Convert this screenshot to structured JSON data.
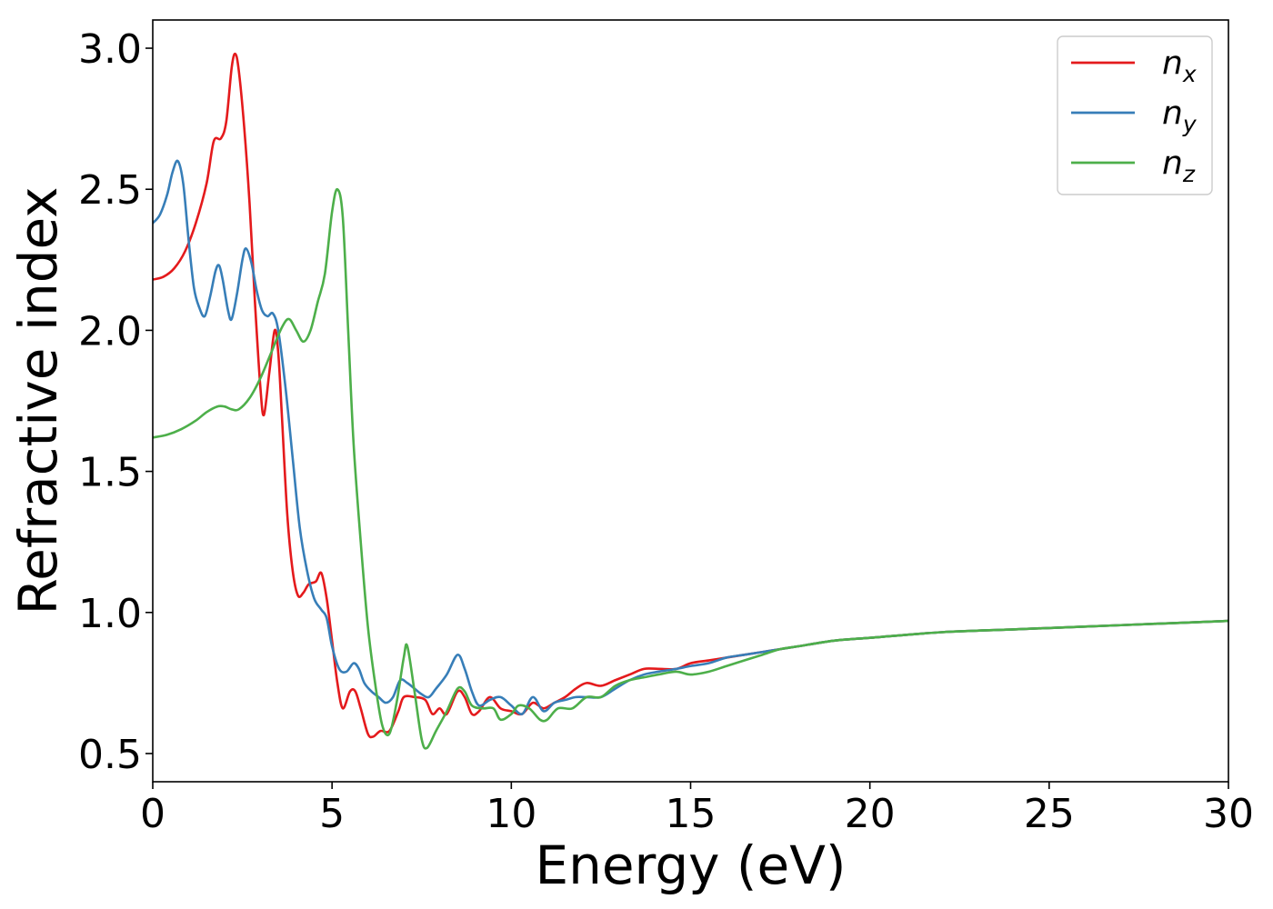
{
  "chart_data": {
    "type": "line",
    "title": "",
    "xlabel": "Energy (eV)",
    "ylabel": "Refractive index",
    "xlim": [
      0,
      30
    ],
    "ylim": [
      0.4,
      3.1
    ],
    "xticks": [
      0,
      5,
      10,
      15,
      20,
      25,
      30
    ],
    "yticks": [
      0.5,
      1.0,
      1.5,
      2.0,
      2.5,
      3.0
    ],
    "xtick_labels": [
      "0",
      "5",
      "10",
      "15",
      "20",
      "25",
      "30"
    ],
    "ytick_labels": [
      "0.5",
      "1.0",
      "1.5",
      "2.0",
      "2.5",
      "3.0"
    ],
    "grid": false,
    "legend_position": "top-right",
    "series": [
      {
        "name": "n_x",
        "legend_base": "n",
        "legend_sub": "x",
        "color": "#e41a1c",
        "points": [
          [
            0,
            2.18
          ],
          [
            0.3,
            2.19
          ],
          [
            0.6,
            2.22
          ],
          [
            0.9,
            2.28
          ],
          [
            1.2,
            2.38
          ],
          [
            1.5,
            2.52
          ],
          [
            1.7,
            2.67
          ],
          [
            1.9,
            2.68
          ],
          [
            2.05,
            2.74
          ],
          [
            2.2,
            2.93
          ],
          [
            2.3,
            2.98
          ],
          [
            2.4,
            2.92
          ],
          [
            2.55,
            2.72
          ],
          [
            2.7,
            2.45
          ],
          [
            2.85,
            2.1
          ],
          [
            3.0,
            1.8
          ],
          [
            3.1,
            1.7
          ],
          [
            3.25,
            1.85
          ],
          [
            3.4,
            2.0
          ],
          [
            3.5,
            1.92
          ],
          [
            3.6,
            1.7
          ],
          [
            3.75,
            1.35
          ],
          [
            3.9,
            1.15
          ],
          [
            4.05,
            1.06
          ],
          [
            4.2,
            1.07
          ],
          [
            4.35,
            1.1
          ],
          [
            4.55,
            1.11
          ],
          [
            4.7,
            1.14
          ],
          [
            4.85,
            1.05
          ],
          [
            5.0,
            0.9
          ],
          [
            5.15,
            0.75
          ],
          [
            5.3,
            0.66
          ],
          [
            5.5,
            0.72
          ],
          [
            5.65,
            0.72
          ],
          [
            5.8,
            0.66
          ],
          [
            6.0,
            0.57
          ],
          [
            6.15,
            0.56
          ],
          [
            6.35,
            0.58
          ],
          [
            6.6,
            0.58
          ],
          [
            6.85,
            0.65
          ],
          [
            7.0,
            0.7
          ],
          [
            7.3,
            0.7
          ],
          [
            7.6,
            0.69
          ],
          [
            7.8,
            0.64
          ],
          [
            8.0,
            0.66
          ],
          [
            8.2,
            0.64
          ],
          [
            8.5,
            0.72
          ],
          [
            8.7,
            0.7
          ],
          [
            8.9,
            0.64
          ],
          [
            9.1,
            0.65
          ],
          [
            9.4,
            0.7
          ],
          [
            9.7,
            0.66
          ],
          [
            10.0,
            0.65
          ],
          [
            10.3,
            0.64
          ],
          [
            10.6,
            0.68
          ],
          [
            10.9,
            0.66
          ],
          [
            11.2,
            0.68
          ],
          [
            11.5,
            0.7
          ],
          [
            11.8,
            0.73
          ],
          [
            12.1,
            0.75
          ],
          [
            12.5,
            0.74
          ],
          [
            12.9,
            0.76
          ],
          [
            13.3,
            0.78
          ],
          [
            13.7,
            0.8
          ],
          [
            14.1,
            0.8
          ],
          [
            14.6,
            0.8
          ],
          [
            15.0,
            0.82
          ],
          [
            15.5,
            0.83
          ],
          [
            16.0,
            0.84
          ],
          [
            16.5,
            0.85
          ],
          [
            17.0,
            0.86
          ],
          [
            17.5,
            0.87
          ],
          [
            18.0,
            0.88
          ],
          [
            19.0,
            0.9
          ],
          [
            20.0,
            0.91
          ],
          [
            22.0,
            0.93
          ],
          [
            24.0,
            0.94
          ],
          [
            26.0,
            0.95
          ],
          [
            28.0,
            0.96
          ],
          [
            30.0,
            0.97
          ]
        ]
      },
      {
        "name": "n_y",
        "legend_base": "n",
        "legend_sub": "y",
        "color": "#377eb8",
        "points": [
          [
            0,
            2.38
          ],
          [
            0.2,
            2.41
          ],
          [
            0.4,
            2.48
          ],
          [
            0.55,
            2.56
          ],
          [
            0.7,
            2.6
          ],
          [
            0.85,
            2.52
          ],
          [
            1.0,
            2.32
          ],
          [
            1.15,
            2.15
          ],
          [
            1.3,
            2.08
          ],
          [
            1.45,
            2.05
          ],
          [
            1.6,
            2.12
          ],
          [
            1.75,
            2.21
          ],
          [
            1.85,
            2.23
          ],
          [
            1.95,
            2.18
          ],
          [
            2.1,
            2.07
          ],
          [
            2.2,
            2.04
          ],
          [
            2.35,
            2.13
          ],
          [
            2.5,
            2.25
          ],
          [
            2.6,
            2.29
          ],
          [
            2.75,
            2.24
          ],
          [
            2.9,
            2.14
          ],
          [
            3.05,
            2.07
          ],
          [
            3.2,
            2.05
          ],
          [
            3.35,
            2.06
          ],
          [
            3.5,
            2.0
          ],
          [
            3.7,
            1.8
          ],
          [
            3.9,
            1.55
          ],
          [
            4.1,
            1.3
          ],
          [
            4.3,
            1.15
          ],
          [
            4.5,
            1.05
          ],
          [
            4.7,
            1.01
          ],
          [
            4.85,
            0.98
          ],
          [
            5.0,
            0.88
          ],
          [
            5.2,
            0.8
          ],
          [
            5.4,
            0.79
          ],
          [
            5.6,
            0.82
          ],
          [
            5.75,
            0.8
          ],
          [
            5.9,
            0.75
          ],
          [
            6.1,
            0.72
          ],
          [
            6.3,
            0.7
          ],
          [
            6.5,
            0.68
          ],
          [
            6.7,
            0.7
          ],
          [
            6.9,
            0.76
          ],
          [
            7.1,
            0.75
          ],
          [
            7.3,
            0.73
          ],
          [
            7.5,
            0.71
          ],
          [
            7.7,
            0.7
          ],
          [
            7.9,
            0.73
          ],
          [
            8.2,
            0.78
          ],
          [
            8.5,
            0.85
          ],
          [
            8.7,
            0.8
          ],
          [
            8.9,
            0.72
          ],
          [
            9.1,
            0.67
          ],
          [
            9.4,
            0.69
          ],
          [
            9.7,
            0.7
          ],
          [
            10.0,
            0.67
          ],
          [
            10.3,
            0.64
          ],
          [
            10.6,
            0.7
          ],
          [
            10.9,
            0.65
          ],
          [
            11.2,
            0.68
          ],
          [
            11.5,
            0.69
          ],
          [
            11.8,
            0.7
          ],
          [
            12.1,
            0.7
          ],
          [
            12.5,
            0.7
          ],
          [
            12.9,
            0.73
          ],
          [
            13.3,
            0.76
          ],
          [
            13.7,
            0.78
          ],
          [
            14.1,
            0.79
          ],
          [
            14.6,
            0.8
          ],
          [
            15.0,
            0.81
          ],
          [
            15.5,
            0.82
          ],
          [
            16.0,
            0.84
          ],
          [
            16.5,
            0.85
          ],
          [
            17.0,
            0.86
          ],
          [
            17.5,
            0.87
          ],
          [
            18.0,
            0.88
          ],
          [
            19.0,
            0.9
          ],
          [
            20.0,
            0.91
          ],
          [
            22.0,
            0.93
          ],
          [
            24.0,
            0.94
          ],
          [
            26.0,
            0.95
          ],
          [
            28.0,
            0.96
          ],
          [
            30.0,
            0.97
          ]
        ]
      },
      {
        "name": "n_z",
        "legend_base": "n",
        "legend_sub": "z",
        "color": "#4daf4a",
        "points": [
          [
            0,
            1.62
          ],
          [
            0.4,
            1.63
          ],
          [
            0.8,
            1.65
          ],
          [
            1.2,
            1.68
          ],
          [
            1.5,
            1.71
          ],
          [
            1.8,
            1.73
          ],
          [
            2.0,
            1.73
          ],
          [
            2.2,
            1.72
          ],
          [
            2.4,
            1.72
          ],
          [
            2.7,
            1.76
          ],
          [
            3.0,
            1.83
          ],
          [
            3.3,
            1.92
          ],
          [
            3.6,
            2.01
          ],
          [
            3.8,
            2.04
          ],
          [
            4.0,
            2.0
          ],
          [
            4.2,
            1.96
          ],
          [
            4.4,
            2.0
          ],
          [
            4.6,
            2.1
          ],
          [
            4.8,
            2.2
          ],
          [
            5.0,
            2.42
          ],
          [
            5.15,
            2.5
          ],
          [
            5.3,
            2.4
          ],
          [
            5.45,
            2.0
          ],
          [
            5.6,
            1.6
          ],
          [
            5.8,
            1.25
          ],
          [
            6.0,
            0.95
          ],
          [
            6.2,
            0.75
          ],
          [
            6.4,
            0.6
          ],
          [
            6.6,
            0.57
          ],
          [
            6.8,
            0.68
          ],
          [
            7.0,
            0.84
          ],
          [
            7.1,
            0.88
          ],
          [
            7.3,
            0.72
          ],
          [
            7.5,
            0.55
          ],
          [
            7.65,
            0.52
          ],
          [
            7.9,
            0.58
          ],
          [
            8.2,
            0.65
          ],
          [
            8.5,
            0.73
          ],
          [
            8.7,
            0.72
          ],
          [
            8.9,
            0.67
          ],
          [
            9.2,
            0.66
          ],
          [
            9.5,
            0.66
          ],
          [
            9.7,
            0.62
          ],
          [
            10.0,
            0.64
          ],
          [
            10.2,
            0.67
          ],
          [
            10.5,
            0.66
          ],
          [
            10.8,
            0.62
          ],
          [
            11.0,
            0.62
          ],
          [
            11.3,
            0.66
          ],
          [
            11.7,
            0.66
          ],
          [
            12.1,
            0.7
          ],
          [
            12.5,
            0.7
          ],
          [
            12.9,
            0.74
          ],
          [
            13.3,
            0.76
          ],
          [
            13.7,
            0.77
          ],
          [
            14.1,
            0.78
          ],
          [
            14.6,
            0.79
          ],
          [
            15.0,
            0.78
          ],
          [
            15.5,
            0.79
          ],
          [
            16.0,
            0.81
          ],
          [
            16.5,
            0.83
          ],
          [
            17.0,
            0.85
          ],
          [
            17.5,
            0.87
          ],
          [
            18.0,
            0.88
          ],
          [
            19.0,
            0.9
          ],
          [
            20.0,
            0.91
          ],
          [
            22.0,
            0.93
          ],
          [
            24.0,
            0.94
          ],
          [
            26.0,
            0.95
          ],
          [
            28.0,
            0.96
          ],
          [
            30.0,
            0.97
          ]
        ]
      }
    ]
  }
}
